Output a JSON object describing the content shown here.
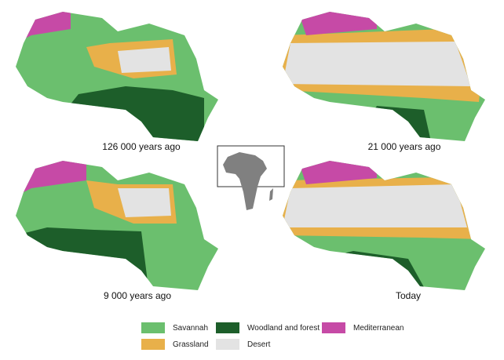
{
  "maps": [
    {
      "caption": "126 000 years ago"
    },
    {
      "caption": "21 000 years ago"
    },
    {
      "caption": "9 000 years ago"
    },
    {
      "caption": "Today"
    }
  ],
  "legend": [
    {
      "label": "Savannah",
      "color": "#6bbf6e"
    },
    {
      "label": "Woodland and forest",
      "color": "#1d5e2a"
    },
    {
      "label": "Mediterranean",
      "color": "#c64aa6"
    },
    {
      "label": "Grassland",
      "color": "#e8b04a"
    },
    {
      "label": "Desert",
      "color": "#e3e3e3"
    }
  ],
  "inset": {
    "fill": "#808080"
  }
}
